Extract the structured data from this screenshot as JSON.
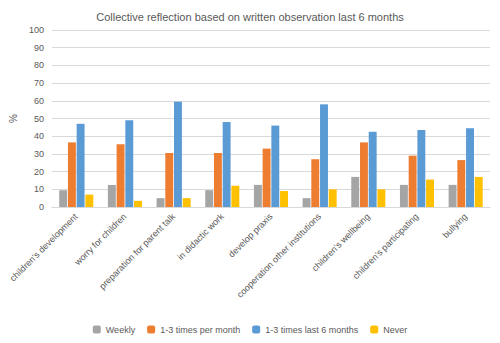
{
  "chart_data": {
    "type": "bar",
    "title": "Collective reflection based on written observation last 6 months",
    "y_label": "%",
    "categories": [
      "children's development",
      "worry for children",
      "preparation for parent talk",
      "in didactic work",
      "develop praxis",
      "cooperation other institutions",
      "children's wellbeing",
      "children's participating",
      "bullying"
    ],
    "series": [
      {
        "name": "Weekly",
        "color": "#a5a5a5",
        "values": [
          9.5,
          12.5,
          5,
          9.5,
          12.5,
          5,
          17,
          12.5,
          12.5
        ]
      },
      {
        "name": "1-3 times per month",
        "color": "#ed7d31",
        "values": [
          36.5,
          35.5,
          30.5,
          30.5,
          33,
          27,
          36.5,
          29,
          26.5
        ]
      },
      {
        "name": "1-3 times last 6 months",
        "color": "#5b9bd5",
        "values": [
          47,
          49,
          59.5,
          48,
          46,
          58,
          42.5,
          43.5,
          44.5
        ]
      },
      {
        "name": "Never",
        "color": "#ffc000",
        "values": [
          7,
          3.5,
          5,
          12,
          9,
          10,
          10,
          15.5,
          17
        ]
      }
    ],
    "ylim": [
      0,
      100
    ],
    "yticks": [
      0,
      10,
      20,
      30,
      40,
      50,
      60,
      70,
      80,
      90,
      100
    ],
    "grid": true,
    "legend": "bottom"
  }
}
